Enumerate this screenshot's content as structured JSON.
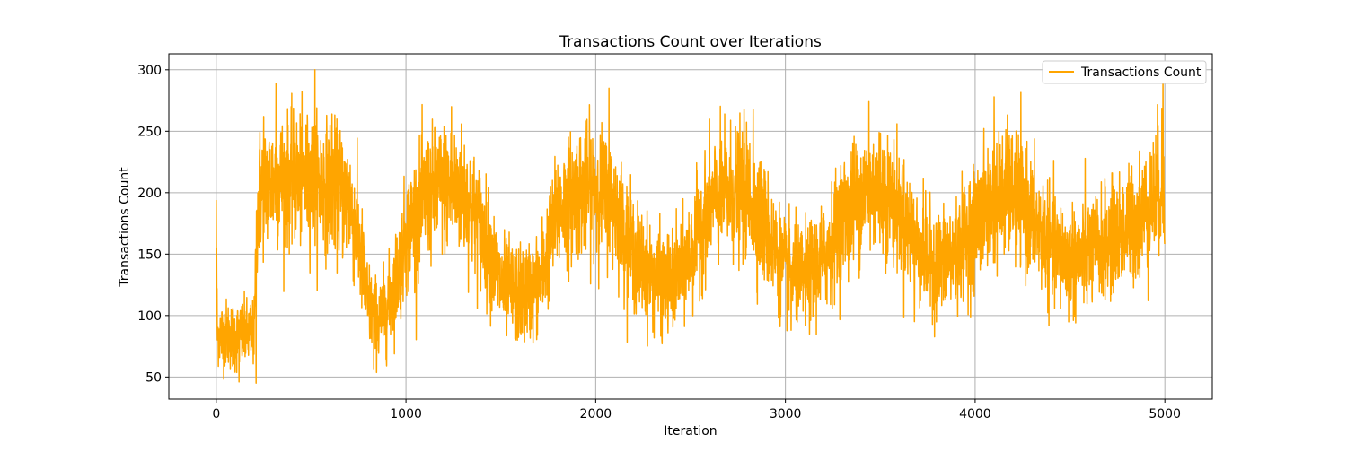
{
  "chart_data": {
    "type": "line",
    "title": "Transactions Count over Iterations",
    "xlabel": "Iteration",
    "ylabel": "Transactions Count",
    "xlim": [
      -250,
      5250
    ],
    "ylim": [
      32,
      313
    ],
    "xticks": [
      0,
      1000,
      2000,
      3000,
      4000,
      5000
    ],
    "yticks": [
      50,
      100,
      150,
      200,
      250,
      300
    ],
    "xtick_labels": [
      "0",
      "1000",
      "2000",
      "3000",
      "4000",
      "5000"
    ],
    "ytick_labels": [
      "50",
      "100",
      "150",
      "200",
      "250",
      "300"
    ],
    "grid": true,
    "legend_position": "upper-right",
    "series": [
      {
        "name": "Transactions Count",
        "color": "#ffa500",
        "n_points": 5000,
        "x_step": 1,
        "envelope": {
          "x": [
            0,
            5,
            20,
            60,
            100,
            150,
            200,
            215,
            230,
            260,
            300,
            400,
            500,
            600,
            700,
            750,
            800,
            850,
            900,
            950,
            1000,
            1100,
            1200,
            1300,
            1400,
            1500,
            1600,
            1700,
            1800,
            1900,
            2000,
            2100,
            2200,
            2300,
            2400,
            2500,
            2600,
            2700,
            2800,
            2900,
            3000,
            3100,
            3200,
            3300,
            3400,
            3500,
            3600,
            3700,
            3800,
            3900,
            4000,
            4100,
            4200,
            4300,
            4400,
            4500,
            4600,
            4700,
            4800,
            4900,
            5000
          ],
          "mean": [
            175,
            85,
            85,
            85,
            82,
            85,
            85,
            180,
            200,
            205,
            210,
            210,
            210,
            205,
            195,
            160,
            110,
            95,
            105,
            130,
            165,
            195,
            205,
            200,
            170,
            125,
            115,
            125,
            185,
            200,
            205,
            190,
            150,
            130,
            125,
            150,
            190,
            200,
            200,
            170,
            135,
            130,
            145,
            180,
            200,
            205,
            185,
            155,
            140,
            150,
            175,
            195,
            200,
            180,
            155,
            145,
            150,
            160,
            170,
            185,
            210
          ],
          "spread": [
            20,
            12,
            14,
            14,
            14,
            14,
            14,
            24,
            26,
            26,
            26,
            26,
            26,
            26,
            26,
            24,
            18,
            16,
            18,
            20,
            24,
            26,
            26,
            26,
            24,
            20,
            20,
            20,
            24,
            26,
            26,
            24,
            22,
            20,
            20,
            22,
            24,
            26,
            26,
            24,
            20,
            20,
            22,
            24,
            26,
            26,
            24,
            22,
            22,
            22,
            24,
            26,
            26,
            24,
            22,
            22,
            22,
            22,
            24,
            24,
            30
          ]
        },
        "peaks": [
          {
            "x": 0,
            "y": 194
          },
          {
            "x": 35,
            "y": 65
          },
          {
            "x": 120,
            "y": 46
          },
          {
            "x": 210,
            "y": 45
          },
          {
            "x": 250,
            "y": 262
          },
          {
            "x": 315,
            "y": 289
          },
          {
            "x": 520,
            "y": 300
          },
          {
            "x": 610,
            "y": 264
          },
          {
            "x": 830,
            "y": 56
          },
          {
            "x": 1240,
            "y": 270
          },
          {
            "x": 1580,
            "y": 85
          },
          {
            "x": 2070,
            "y": 285
          },
          {
            "x": 2350,
            "y": 77
          },
          {
            "x": 2830,
            "y": 268
          },
          {
            "x": 3030,
            "y": 88
          },
          {
            "x": 3440,
            "y": 274
          },
          {
            "x": 3680,
            "y": 95
          },
          {
            "x": 4100,
            "y": 278
          },
          {
            "x": 4530,
            "y": 94
          },
          {
            "x": 4990,
            "y": 300
          }
        ]
      }
    ]
  }
}
